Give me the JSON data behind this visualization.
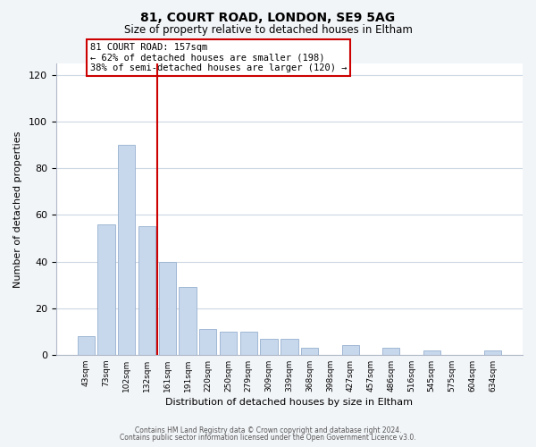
{
  "title1": "81, COURT ROAD, LONDON, SE9 5AG",
  "title2": "Size of property relative to detached houses in Eltham",
  "xlabel": "Distribution of detached houses by size in Eltham",
  "ylabel": "Number of detached properties",
  "categories": [
    "43sqm",
    "73sqm",
    "102sqm",
    "132sqm",
    "161sqm",
    "191sqm",
    "220sqm",
    "250sqm",
    "279sqm",
    "309sqm",
    "339sqm",
    "368sqm",
    "398sqm",
    "427sqm",
    "457sqm",
    "486sqm",
    "516sqm",
    "545sqm",
    "575sqm",
    "604sqm",
    "634sqm"
  ],
  "values": [
    8,
    56,
    90,
    55,
    40,
    29,
    11,
    10,
    10,
    7,
    7,
    3,
    0,
    4,
    0,
    3,
    0,
    2,
    0,
    0,
    2
  ],
  "bar_color": "#c8d8ec",
  "bar_edge_color": "#a0b8d4",
  "reference_line_color": "#cc0000",
  "annotation_text_line1": "81 COURT ROAD: 157sqm",
  "annotation_text_line2": "← 62% of detached houses are smaller (198)",
  "annotation_text_line3": "38% of semi-detached houses are larger (120) →",
  "ylim": [
    0,
    125
  ],
  "yticks": [
    0,
    20,
    40,
    60,
    80,
    100,
    120
  ],
  "footer_line1": "Contains HM Land Registry data © Crown copyright and database right 2024.",
  "footer_line2": "Contains public sector information licensed under the Open Government Licence v3.0.",
  "bg_color": "#f2f5f8",
  "plot_bg_color": "#ffffff",
  "grid_color": "#ccd8e4"
}
